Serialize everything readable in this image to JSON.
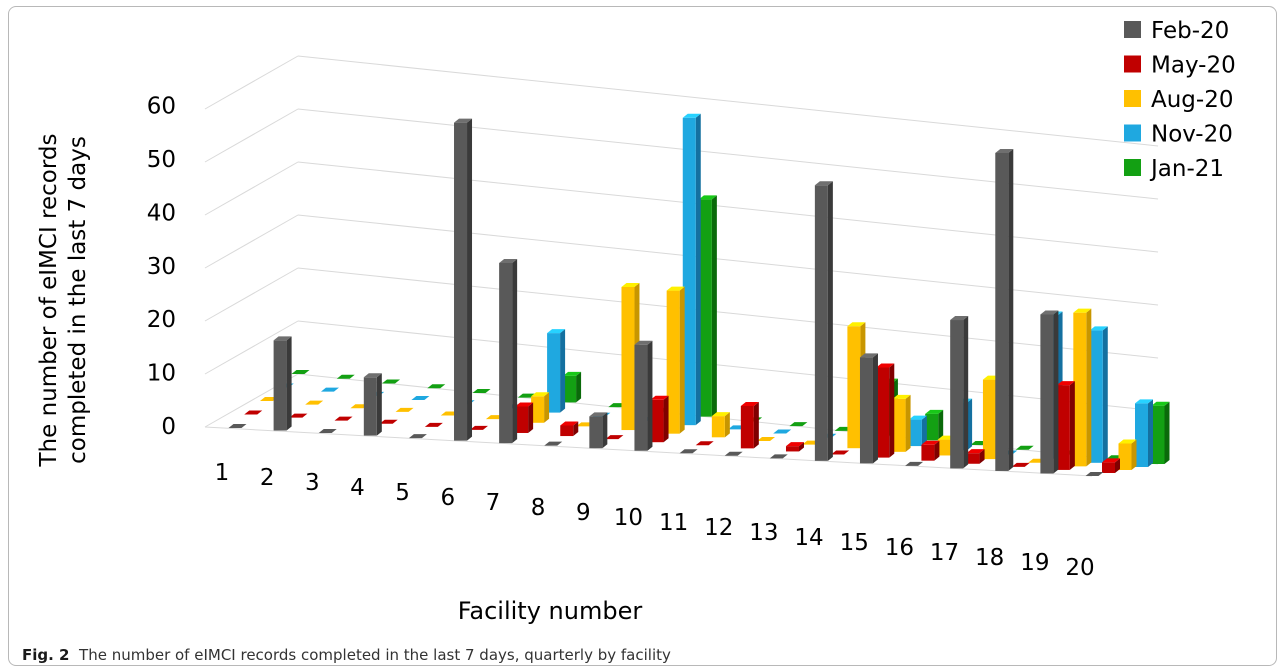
{
  "caption": {
    "label": "Fig. 2",
    "text": "The number of eIMCI records completed in the last 7 days, quarterly by facility"
  },
  "chart_data": {
    "type": "bar",
    "title": "",
    "xlabel": "Facility number",
    "ylabel": "The number of eIMCI records completed in the last 7 days",
    "ylabel_lines": [
      "The number of eIMCI records",
      "completed in the last 7 days"
    ],
    "ylim": [
      0,
      60
    ],
    "yticks": [
      "0",
      "10",
      "20",
      "30",
      "40",
      "50",
      "60"
    ],
    "grid": true,
    "legend_position": "top-right",
    "categories": [
      "1",
      "2",
      "3",
      "4",
      "5",
      "6",
      "7",
      "8",
      "9",
      "10",
      "11",
      "12",
      "13",
      "14",
      "15",
      "16",
      "17",
      "18",
      "19",
      "20"
    ],
    "series": [
      {
        "name": "Feb-20",
        "color": "#595959",
        "side": "#3a3a3a",
        "values": [
          0,
          17,
          0,
          11,
          0,
          60,
          34,
          0,
          6,
          20,
          0,
          0,
          0,
          52,
          20,
          0,
          28,
          60,
          30,
          0
        ]
      },
      {
        "name": "May-20",
        "color": "#c00000",
        "side": "#800000",
        "values": [
          0,
          0,
          0,
          0,
          0,
          0,
          5,
          2,
          0,
          8,
          0,
          8,
          1,
          0,
          17,
          3,
          2,
          0,
          16,
          2
        ]
      },
      {
        "name": "Aug-20",
        "color": "#ffc000",
        "side": "#c89600",
        "values": [
          0,
          0,
          0,
          0,
          0,
          0,
          5,
          0,
          27,
          27,
          4,
          0,
          0,
          23,
          10,
          3,
          15,
          0,
          29,
          5
        ]
      },
      {
        "name": "Nov-20",
        "color": "#1fa8e0",
        "side": "#1470a0",
        "values": [
          0,
          0,
          0,
          0,
          0,
          0,
          15,
          0,
          0,
          58,
          0,
          0,
          0,
          8,
          5,
          9,
          0,
          27,
          25,
          12
        ]
      },
      {
        "name": "Jan-21",
        "color": "#13a013",
        "side": "#0a6a0a",
        "values": [
          0,
          0,
          0,
          0,
          0,
          0,
          5,
          0,
          0,
          41,
          0,
          0,
          0,
          10,
          5,
          0,
          0,
          0,
          0,
          11
        ]
      }
    ]
  }
}
